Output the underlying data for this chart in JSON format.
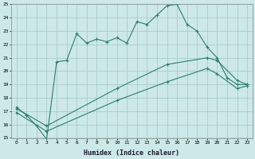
{
  "xlabel": "Humidex (Indice chaleur)",
  "ylabel": "",
  "bg_color": "#cce8e8",
  "grid_color": "#a0c8c8",
  "line_color": "#2e7d6e",
  "ylim": [
    15,
    25
  ],
  "xlim": [
    -0.5,
    23.5
  ],
  "yticks": [
    15,
    16,
    17,
    18,
    19,
    20,
    21,
    22,
    23,
    24,
    25
  ],
  "xticks": [
    0,
    1,
    2,
    3,
    4,
    5,
    6,
    7,
    8,
    9,
    10,
    11,
    12,
    13,
    14,
    15,
    16,
    17,
    18,
    19,
    20,
    21,
    22,
    23
  ],
  "line1_x": [
    0,
    1,
    2,
    3,
    4,
    5,
    6,
    7,
    8,
    9,
    10,
    11,
    12,
    13,
    14,
    15,
    16,
    17,
    18,
    19,
    20,
    21,
    22,
    23
  ],
  "line1_y": [
    17.3,
    16.7,
    15.9,
    14.9,
    20.7,
    20.8,
    22.8,
    22.1,
    22.4,
    22.2,
    22.5,
    22.1,
    23.7,
    23.5,
    24.2,
    24.9,
    25.0,
    23.5,
    23.0,
    21.8,
    21.0,
    19.5,
    19.0,
    19.0
  ],
  "line2_x": [
    0,
    3,
    10,
    15,
    19,
    20,
    22,
    23
  ],
  "line2_y": [
    17.2,
    15.9,
    18.7,
    20.5,
    21.0,
    20.8,
    19.3,
    19.0
  ],
  "line3_x": [
    0,
    3,
    10,
    15,
    19,
    20,
    22,
    23
  ],
  "line3_y": [
    16.9,
    15.5,
    17.8,
    19.2,
    20.2,
    19.8,
    18.7,
    18.9
  ]
}
